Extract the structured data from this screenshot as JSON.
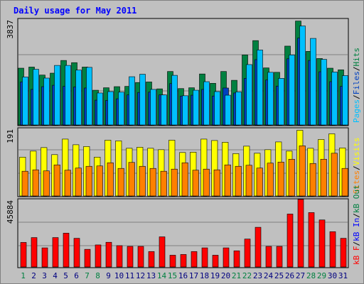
{
  "title": "Daily usage for May 2011",
  "chart_data": [
    {
      "type": "bar",
      "name": "hits-files-pages",
      "max_label": "3837",
      "ylim": [
        0,
        3837
      ],
      "legend": {
        "pages": "Pages",
        "sep1": "/",
        "files": "Files",
        "sep2": "/",
        "hits": "Hits",
        "colors": {
          "pages": "#00c0ff",
          "files": "#0040c0",
          "hits": "#008040"
        }
      },
      "series": [
        {
          "name": "Hits",
          "values": [
            2060,
            2100,
            1810,
            1880,
            2340,
            2260,
            2100,
            1260,
            1350,
            1390,
            1400,
            1540,
            1560,
            1310,
            1940,
            1320,
            1350,
            1850,
            1510,
            1940,
            1620,
            2540,
            3060,
            2070,
            1910,
            2860,
            3770,
            2670,
            2410,
            2060,
            2000
          ]
        },
        {
          "name": "Files",
          "values": [
            1560,
            1290,
            1390,
            1440,
            1400,
            1380,
            1340,
            900,
            890,
            950,
            1090,
            1180,
            1190,
            1090,
            1500,
            1050,
            1080,
            1290,
            1050,
            1340,
            1160,
            1690,
            2370,
            1630,
            1410,
            2400,
            3150,
            2340,
            1930,
            1570,
            1400
          ]
        },
        {
          "name": "Pages",
          "values": [
            1740,
            2020,
            1700,
            2160,
            2160,
            1990,
            2090,
            1160,
            1210,
            1190,
            1750,
            1840,
            1290,
            1090,
            1800,
            1060,
            1260,
            1570,
            1210,
            1080,
            1200,
            2190,
            2720,
            1910,
            1690,
            2540,
            3590,
            3140,
            2380,
            1920,
            1790
          ]
        }
      ],
      "series_colors": {
        "Hits": "#008040",
        "Files": "#0040c0",
        "Pages": "#00c0ff"
      }
    },
    {
      "type": "bar",
      "name": "visits-sites",
      "max_label": "191",
      "ylim": [
        0,
        191
      ],
      "legend": {
        "sites": "Sites",
        "sep1": "/",
        "visits": "Visits",
        "colors": {
          "sites": "#ff8000",
          "visits": "#ffff00"
        }
      },
      "series": [
        {
          "name": "Visits",
          "values": [
            110,
            127,
            137,
            117,
            161,
            145,
            140,
            110,
            158,
            156,
            135,
            138,
            135,
            131,
            158,
            123,
            124,
            161,
            157,
            152,
            120,
            141,
            121,
            131,
            153,
            127,
            186,
            135,
            160,
            176,
            136
          ]
        },
        {
          "name": "Sites",
          "values": [
            70,
            74,
            71,
            88,
            73,
            79,
            84,
            85,
            94,
            78,
            95,
            84,
            78,
            70,
            76,
            94,
            73,
            76,
            74,
            88,
            84,
            87,
            79,
            93,
            96,
            104,
            142,
            92,
            104,
            121,
            78
          ]
        }
      ],
      "series_colors": {
        "Visits": "#ffff00",
        "Sites": "#ff8000"
      }
    },
    {
      "type": "bar",
      "name": "kbytes",
      "max_label": "45884",
      "ylim": [
        0,
        45884
      ],
      "legend": {
        "kbf": "kB F",
        "sep1": "/",
        "kbin": "kB In",
        "sep2": "/",
        "kbout": "kB Out",
        "colors": {
          "kbf": "#ff0000",
          "kbin": "#0000ff",
          "kbout": "#008040"
        }
      },
      "series": [
        {
          "name": "kB F",
          "values": [
            16700,
            20000,
            13000,
            20000,
            23000,
            19500,
            12000,
            15000,
            16800,
            14500,
            14000,
            14000,
            10500,
            20500,
            8000,
            8500,
            10500,
            13000,
            8000,
            13000,
            11000,
            19000,
            27000,
            14000,
            14000,
            36000,
            46000,
            37000,
            32000,
            24000,
            19500
          ]
        }
      ],
      "series_colors": {
        "kB F": "#ff0000"
      }
    }
  ],
  "x_labels": {
    "days": [
      "1",
      "2",
      "3",
      "4",
      "5",
      "6",
      "7",
      "8",
      "9",
      "10",
      "11",
      "12",
      "13",
      "14",
      "15",
      "16",
      "17",
      "18",
      "19",
      "20",
      "21",
      "22",
      "23",
      "24",
      "25",
      "26",
      "27",
      "28",
      "29",
      "30",
      "31"
    ],
    "weekend_days": [
      "1",
      "7",
      "8",
      "14",
      "15",
      "21",
      "22",
      "28",
      "29"
    ],
    "weekday_color": "#000080",
    "weekend_color": "#008040"
  }
}
